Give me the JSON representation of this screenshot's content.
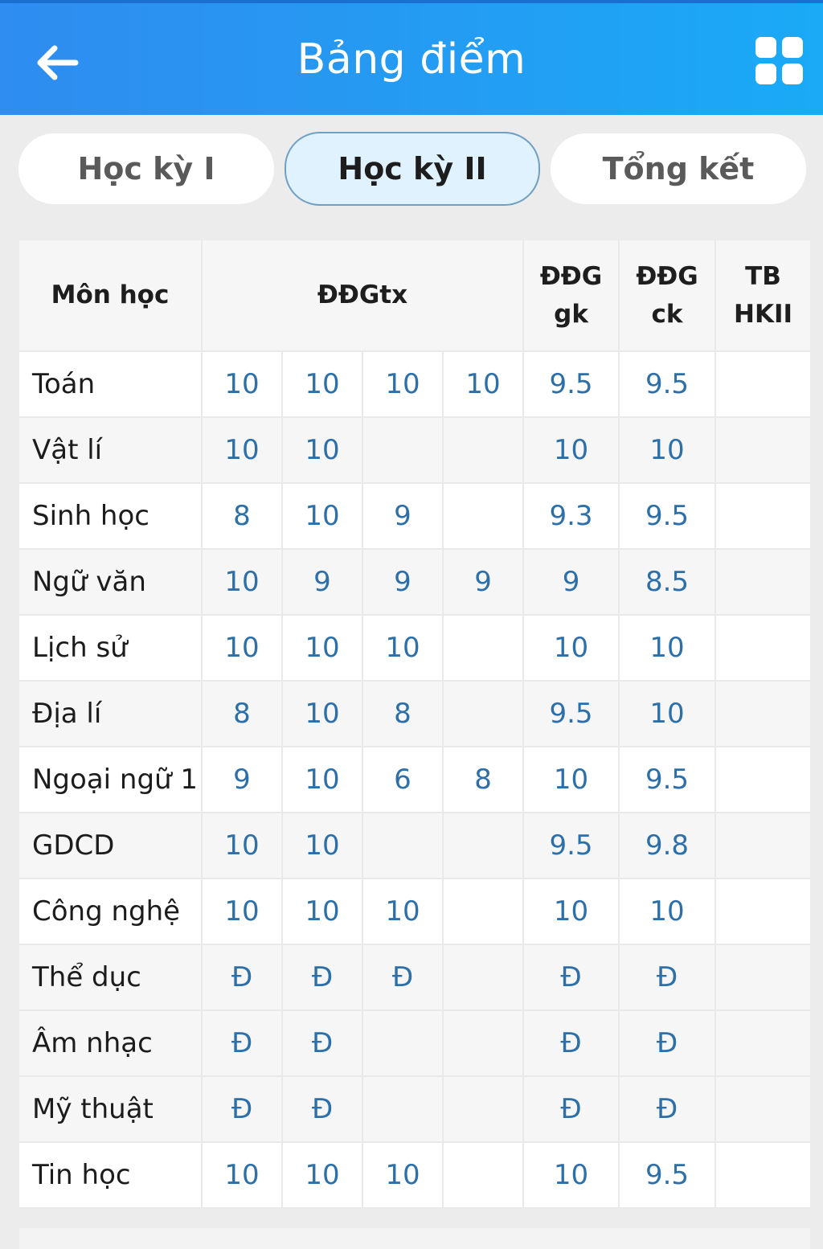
{
  "appbar": {
    "title": "Bảng điểm",
    "back_icon": "arrow-left-icon",
    "menu_icon": "grid-icon",
    "colors": {
      "gradient_start": "#2f8cf0",
      "gradient_end": "#1aaaf6"
    }
  },
  "tabs": [
    {
      "label": "Học kỳ I",
      "active": false
    },
    {
      "label": "Học kỳ II",
      "active": true
    },
    {
      "label": "Tổng kết",
      "active": false
    }
  ],
  "table": {
    "headers": {
      "subject": "Môn học",
      "ddgtx": "ĐĐGtx",
      "gk_line1": "ĐĐG",
      "gk_line2": "gk",
      "ck_line1": "ĐĐG",
      "ck_line2": "ck",
      "tb_line1": "TB",
      "tb_line2": "HKII"
    },
    "rows": [
      {
        "subject": "Toán",
        "tx": [
          "10",
          "10",
          "10",
          "10"
        ],
        "gk": "9.5",
        "ck": "9.5",
        "tb": ""
      },
      {
        "subject": "Vật lí",
        "tx": [
          "10",
          "10",
          "",
          ""
        ],
        "gk": "10",
        "ck": "10",
        "tb": ""
      },
      {
        "subject": "Sinh học",
        "tx": [
          "8",
          "10",
          "9",
          ""
        ],
        "gk": "9.3",
        "ck": "9.5",
        "tb": ""
      },
      {
        "subject": "Ngữ văn",
        "tx": [
          "10",
          "9",
          "9",
          "9"
        ],
        "gk": "9",
        "ck": "8.5",
        "tb": ""
      },
      {
        "subject": "Lịch sử",
        "tx": [
          "10",
          "10",
          "10",
          ""
        ],
        "gk": "10",
        "ck": "10",
        "tb": ""
      },
      {
        "subject": "Địa lí",
        "tx": [
          "8",
          "10",
          "8",
          ""
        ],
        "gk": "9.5",
        "ck": "10",
        "tb": ""
      },
      {
        "subject": "Ngoại ngữ 1",
        "tx": [
          "9",
          "10",
          "6",
          "8"
        ],
        "gk": "10",
        "ck": "9.5",
        "tb": ""
      },
      {
        "subject": "GDCD",
        "tx": [
          "10",
          "10",
          "",
          ""
        ],
        "gk": "9.5",
        "ck": "9.8",
        "tb": ""
      },
      {
        "subject": "Công nghệ",
        "tx": [
          "10",
          "10",
          "10",
          ""
        ],
        "gk": "10",
        "ck": "10",
        "tb": ""
      },
      {
        "subject": "Thể dục",
        "tx": [
          "Đ",
          "Đ",
          "Đ",
          ""
        ],
        "gk": "Đ",
        "ck": "Đ",
        "tb": ""
      },
      {
        "subject": "Âm nhạc",
        "tx": [
          "Đ",
          "Đ",
          "",
          ""
        ],
        "gk": "Đ",
        "ck": "Đ",
        "tb": ""
      },
      {
        "subject": "Mỹ thuật",
        "tx": [
          "Đ",
          "Đ",
          "",
          ""
        ],
        "gk": "Đ",
        "ck": "Đ",
        "tb": ""
      },
      {
        "subject": "Tin học",
        "tx": [
          "10",
          "10",
          "10",
          ""
        ],
        "gk": "10",
        "ck": "9.5",
        "tb": ""
      }
    ]
  }
}
